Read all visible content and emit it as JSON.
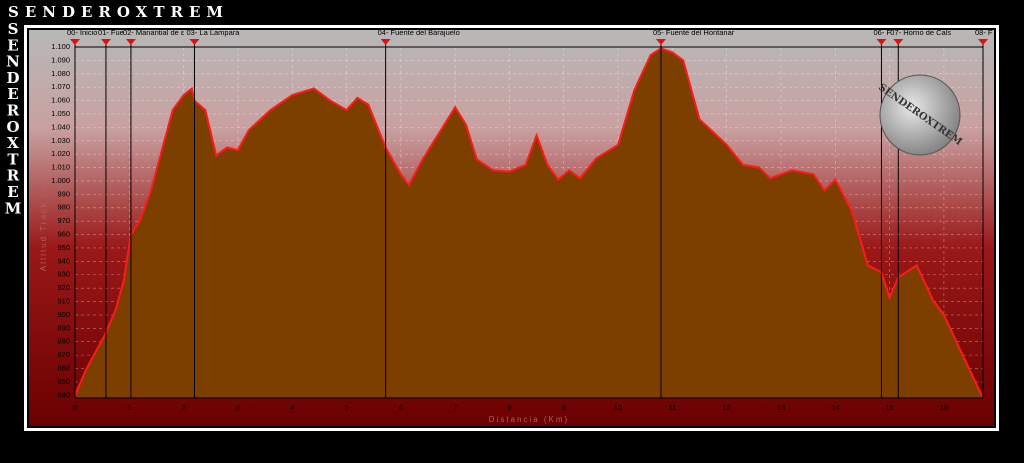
{
  "brand": "SENDEROXTREM",
  "chart_data": {
    "type": "area",
    "y_label": "Altitud Track (m)",
    "x_label": "Distancia (Km)",
    "color": "#7d3f00",
    "line_color": "#ff1a1a",
    "xlim": [
      0,
      16.72
    ],
    "ylim": [
      838,
      1100
    ],
    "xticks": [
      0,
      1,
      2,
      3,
      4,
      5,
      6,
      7,
      8,
      9,
      10,
      11,
      12,
      13,
      14,
      15,
      16
    ],
    "yticks": [
      {
        "value": 1100,
        "label": "1.100"
      },
      {
        "value": 1090,
        "label": "1.090"
      },
      {
        "value": 1080,
        "label": "1.080"
      },
      {
        "value": 1070,
        "label": "1.070"
      },
      {
        "value": 1060,
        "label": "1.060"
      },
      {
        "value": 1050,
        "label": "1.050"
      },
      {
        "value": 1040,
        "label": "1.040"
      },
      {
        "value": 1030,
        "label": "1.030"
      },
      {
        "value": 1020,
        "label": "1.020"
      },
      {
        "value": 1010,
        "label": "1.010"
      },
      {
        "value": 1000,
        "label": "1.000"
      },
      990,
      980,
      970,
      960,
      950,
      940,
      930,
      920,
      910,
      900,
      890,
      880,
      870,
      860,
      850,
      840
    ],
    "grid": true,
    "x": [
      0,
      0.2,
      0.4,
      0.55,
      0.75,
      0.9,
      1.03,
      1.2,
      1.4,
      1.6,
      1.8,
      2.0,
      2.15,
      2.2,
      2.4,
      2.6,
      2.8,
      3.0,
      3.2,
      3.6,
      4.0,
      4.4,
      4.7,
      5.0,
      5.2,
      5.4,
      5.72,
      6.0,
      6.15,
      6.4,
      6.8,
      7.0,
      7.2,
      7.4,
      7.7,
      8.0,
      8.3,
      8.5,
      8.7,
      8.9,
      9.1,
      9.3,
      9.6,
      10.0,
      10.3,
      10.6,
      10.79,
      11.0,
      11.2,
      11.5,
      12.0,
      12.3,
      12.6,
      12.8,
      13.2,
      13.6,
      13.8,
      14.0,
      14.3,
      14.6,
      14.85,
      15.0,
      15.16,
      15.5,
      15.8,
      16.0,
      16.3,
      16.72
    ],
    "values": [
      840,
      859,
      874,
      885,
      904,
      926,
      960,
      971,
      993,
      1023,
      1053,
      1064,
      1069,
      1060,
      1053,
      1019,
      1025,
      1023,
      1038,
      1053,
      1064,
      1069,
      1060,
      1053,
      1062,
      1057,
      1025,
      1005,
      997,
      1016,
      1042,
      1055,
      1042,
      1016,
      1008,
      1007,
      1012,
      1034,
      1012,
      1001,
      1008,
      1002,
      1017,
      1027,
      1068,
      1094,
      1099,
      1096,
      1090,
      1046,
      1027,
      1012,
      1010,
      1002,
      1008,
      1005,
      993,
      1001,
      978,
      937,
      932,
      913,
      928,
      937,
      911,
      900,
      874,
      838
    ],
    "waypoints": [
      {
        "x": 0,
        "label": "00- Inicio"
      },
      {
        "x": 0.57,
        "label": "01- Fue"
      },
      {
        "x": 1.03,
        "label": "02- Manantial de ε"
      },
      {
        "x": 2.2,
        "label": "03- La Lampara"
      },
      {
        "x": 5.72,
        "label": "04- Fuente del Barajuelo"
      },
      {
        "x": 10.79,
        "label": "05- Fuente del Hontanar"
      },
      {
        "x": 14.85,
        "label": "06- F"
      },
      {
        "x": 15.16,
        "label": "07- Horno de Cals"
      },
      {
        "x": 16.72,
        "label": "08- F"
      }
    ]
  }
}
